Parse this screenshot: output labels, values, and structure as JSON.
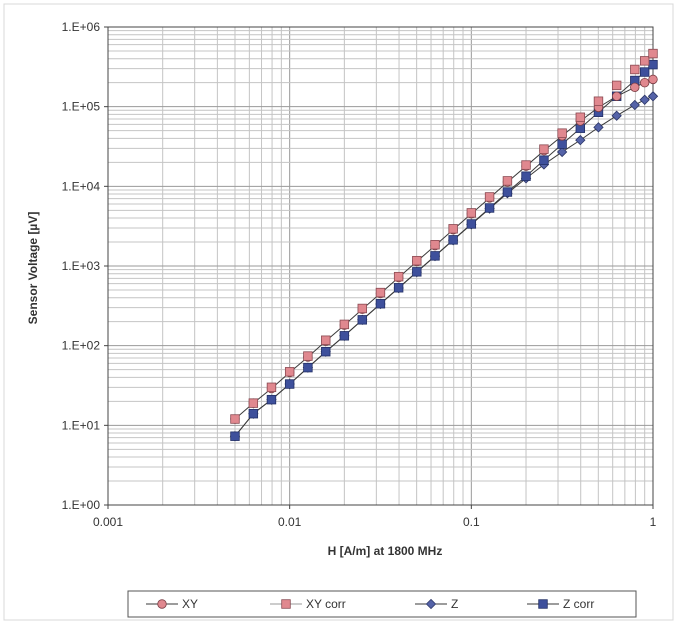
{
  "chart_data": {
    "type": "scatter",
    "title": "",
    "xlabel": "H [A/m] at 1800 MHz",
    "ylabel": "Sensor Voltage [µV]",
    "x_scale": "log",
    "y_scale": "log",
    "xlim": [
      0.001,
      1
    ],
    "ylim": [
      1,
      1000000
    ],
    "grid": true,
    "legend_position": "bottom",
    "x_tick_labels": [
      "0.001",
      "0.01",
      "0.1",
      "1"
    ],
    "x_tick_values": [
      0.001,
      0.01,
      0.1,
      1
    ],
    "y_tick_labels": [
      "1.E+00",
      "1.E+01",
      "1.E+02",
      "1.E+03",
      "1.E+04",
      "1.E+05",
      "1.E+06"
    ],
    "y_tick_values": [
      1,
      10,
      100,
      1000,
      10000,
      100000,
      1000000
    ],
    "series": [
      {
        "name": "XY",
        "marker": "circle",
        "line": true,
        "color": "#e0888f",
        "x": [
          0.005,
          0.00631,
          0.00794,
          0.01,
          0.0126,
          0.0158,
          0.02,
          0.0251,
          0.0316,
          0.0398,
          0.0501,
          0.0631,
          0.0794,
          0.1,
          0.126,
          0.158,
          0.2,
          0.251,
          0.316,
          0.398,
          0.501,
          0.631,
          0.794,
          0.9,
          1.0
        ],
        "y": [
          12,
          19,
          29,
          46,
          72,
          114,
          181,
          286,
          453,
          717,
          1137,
          1800,
          2850,
          4520,
          7150,
          11300,
          17900,
          28000,
          43000,
          66000,
          98000,
          135000,
          175000,
          200000,
          220000
        ]
      },
      {
        "name": "XY corr",
        "marker": "square",
        "line": false,
        "color": "#e0888f",
        "x": [
          0.005,
          0.00631,
          0.00794,
          0.01,
          0.0126,
          0.0158,
          0.02,
          0.0251,
          0.0316,
          0.0398,
          0.0501,
          0.0631,
          0.0794,
          0.1,
          0.126,
          0.158,
          0.2,
          0.251,
          0.316,
          0.398,
          0.501,
          0.631,
          0.794,
          0.9,
          1.0
        ],
        "y": [
          12,
          19,
          30,
          47,
          74,
          117,
          185,
          293,
          464,
          735,
          1166,
          1850,
          2930,
          4640,
          7360,
          11700,
          18500,
          29300,
          46500,
          73600,
          117000,
          185000,
          293000,
          376000,
          464000
        ]
      },
      {
        "name": "Z",
        "marker": "diamond",
        "line": true,
        "color": "#5563a8",
        "x": [
          0.005,
          0.00631,
          0.00794,
          0.01,
          0.0126,
          0.0158,
          0.02,
          0.0251,
          0.0316,
          0.0398,
          0.0501,
          0.0631,
          0.0794,
          0.1,
          0.126,
          0.158,
          0.2,
          0.251,
          0.316,
          0.398,
          0.501,
          0.631,
          0.794,
          0.9,
          1.0
        ],
        "y": [
          7.3,
          14,
          21,
          33,
          53,
          84,
          133,
          211,
          334,
          529,
          838,
          1330,
          2110,
          3330,
          5250,
          8200,
          12600,
          18800,
          27000,
          38000,
          55000,
          77000,
          105000,
          122000,
          135000
        ]
      },
      {
        "name": "Z corr",
        "marker": "square",
        "line": true,
        "color": "#3e509c",
        "x": [
          0.005,
          0.00631,
          0.00794,
          0.01,
          0.0126,
          0.0158,
          0.02,
          0.0251,
          0.0316,
          0.0398,
          0.0501,
          0.0631,
          0.0794,
          0.1,
          0.126,
          0.158,
          0.2,
          0.251,
          0.316,
          0.398,
          0.501,
          0.631,
          0.794,
          0.9,
          1.0
        ],
        "y": [
          7.3,
          14,
          21,
          33,
          53,
          84,
          133,
          211,
          336,
          533,
          845,
          1340,
          2130,
          3370,
          5350,
          8480,
          13400,
          21300,
          33800,
          53600,
          85000,
          135000,
          213000,
          272000,
          337000
        ]
      }
    ]
  }
}
